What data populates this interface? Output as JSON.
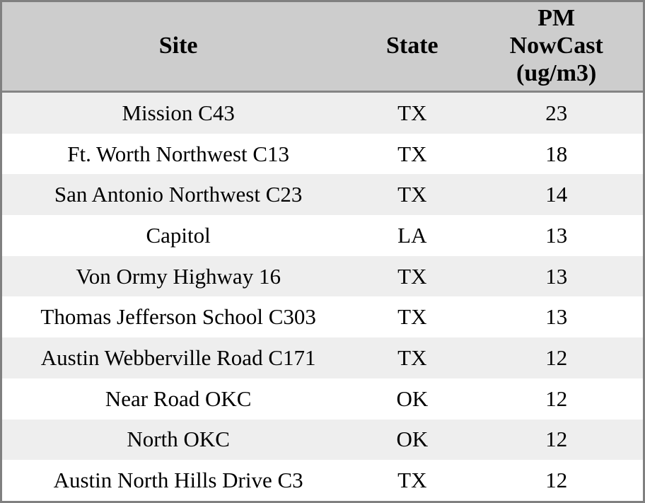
{
  "chart_data": {
    "type": "table",
    "columns": [
      "Site",
      "State",
      "PM NowCast (ug/m3)"
    ],
    "rows": [
      [
        "Mission C43",
        "TX",
        23
      ],
      [
        "Ft. Worth Northwest C13",
        "TX",
        18
      ],
      [
        "San Antonio Northwest C23",
        "TX",
        14
      ],
      [
        "Capitol",
        "LA",
        13
      ],
      [
        "Von Ormy Highway 16",
        "TX",
        13
      ],
      [
        "Thomas Jefferson School C303",
        "TX",
        13
      ],
      [
        "Austin Webberville Road C171",
        "TX",
        12
      ],
      [
        "Near Road OKC",
        "OK",
        12
      ],
      [
        "North OKC",
        "OK",
        12
      ],
      [
        "Austin North Hills Drive C3",
        "TX",
        12
      ]
    ],
    "layout": {
      "striped": true,
      "first_data_row_shaded": true,
      "header_lines_pm_column": [
        "PM",
        "NowCast",
        "(ug/m3)"
      ]
    }
  },
  "colors": {
    "outer_border": "#808080",
    "header_bg": "#cdcdcd",
    "header_divider": "#848484",
    "row_shaded_bg": "#eeeeee",
    "row_plain_bg": "#ffffff",
    "text": "#000000"
  }
}
